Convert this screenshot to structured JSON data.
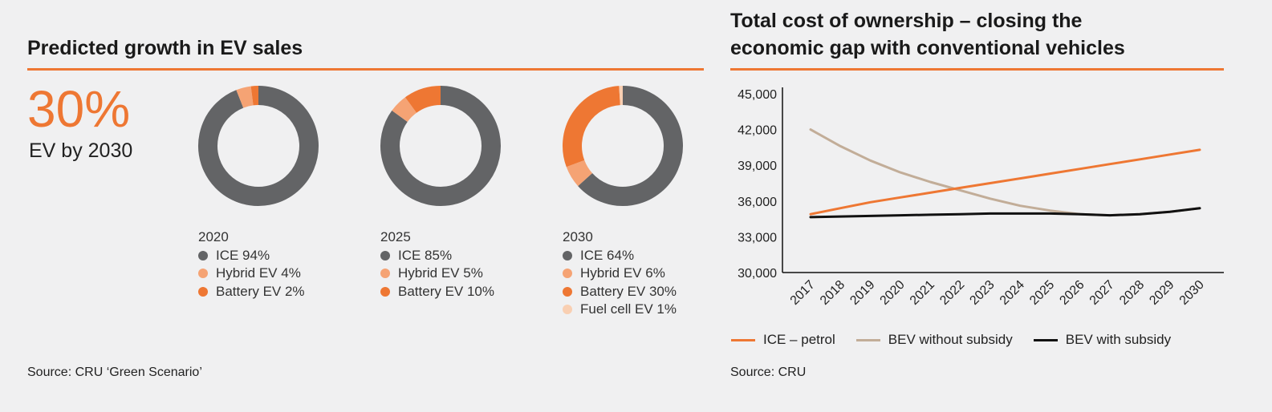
{
  "left": {
    "title": "Predicted growth in EV sales",
    "headline_value": "30%",
    "headline_label": "EV by 2030",
    "source": "Source: CRU ‘Green Scenario’"
  },
  "right": {
    "title_line1": "Total cost of ownership – closing the",
    "title_line2": "economic gap with conventional vehicles",
    "source": "Source: CRU"
  },
  "colors": {
    "accent": "#ee7733",
    "ice": "#636466",
    "hybrid": "#f5a374",
    "battery": "#ee7733",
    "fuelcell": "#f9cfb2",
    "bev_no_subsidy": "#c2ad98",
    "bev_subsidy": "#111111"
  },
  "chart_data": [
    {
      "type": "pie",
      "title": "2020",
      "series": [
        {
          "name": "ICE",
          "label": "ICE 94%",
          "value": 94,
          "color_key": "ice"
        },
        {
          "name": "Hybrid EV",
          "label": "Hybrid EV 4%",
          "value": 4,
          "color_key": "hybrid"
        },
        {
          "name": "Battery EV",
          "label": "Battery EV 2%",
          "value": 2,
          "color_key": "battery"
        }
      ]
    },
    {
      "type": "pie",
      "title": "2025",
      "series": [
        {
          "name": "ICE",
          "label": "ICE 85%",
          "value": 85,
          "color_key": "ice"
        },
        {
          "name": "Hybrid EV",
          "label": "Hybrid EV 5%",
          "value": 5,
          "color_key": "hybrid"
        },
        {
          "name": "Battery EV",
          "label": "Battery EV 10%",
          "value": 10,
          "color_key": "battery"
        }
      ]
    },
    {
      "type": "pie",
      "title": "2030",
      "series": [
        {
          "name": "ICE",
          "label": "ICE 64%",
          "value": 64,
          "color_key": "ice"
        },
        {
          "name": "Hybrid EV",
          "label": "Hybrid EV 6%",
          "value": 6,
          "color_key": "hybrid"
        },
        {
          "name": "Battery EV",
          "label": "Battery EV 30%",
          "value": 30,
          "color_key": "battery"
        },
        {
          "name": "Fuel cell EV",
          "label": "Fuel cell EV 1%",
          "value": 1,
          "color_key": "fuelcell"
        }
      ]
    },
    {
      "type": "line",
      "title": "Total cost of ownership – closing the economic gap with conventional vehicles",
      "x": [
        "2017",
        "2018",
        "2019",
        "2020",
        "2021",
        "2022",
        "2023",
        "2024",
        "2025",
        "2026",
        "2027",
        "2028",
        "2029",
        "2030"
      ],
      "ylim": [
        30000,
        45000
      ],
      "yticks": [
        "30,000",
        "33,000",
        "36,000",
        "39,000",
        "42,000",
        "45,000"
      ],
      "ytick_values": [
        30000,
        33000,
        36000,
        39000,
        42000,
        45000
      ],
      "series": [
        {
          "name": "ICE – petrol",
          "color_key": "accent",
          "values": [
            34900,
            35400,
            35900,
            36300,
            36700,
            37100,
            37500,
            37900,
            38300,
            38700,
            39100,
            39500,
            39900,
            40300
          ]
        },
        {
          "name": "BEV without subsidy",
          "color_key": "bev_no_subsidy",
          "values": [
            42000,
            40600,
            39400,
            38400,
            37600,
            36900,
            36200,
            35600,
            35200,
            34900,
            34800,
            34900,
            35100,
            35400
          ]
        },
        {
          "name": "BEV with subsidy",
          "color_key": "bev_subsidy",
          "values": [
            34650,
            34700,
            34750,
            34800,
            34850,
            34900,
            34950,
            34950,
            34950,
            34900,
            34800,
            34900,
            35100,
            35400
          ]
        }
      ]
    }
  ]
}
